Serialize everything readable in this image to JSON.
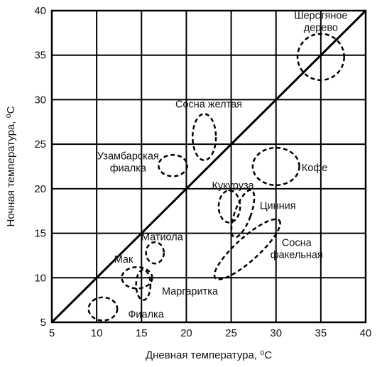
{
  "chart_data": {
    "type": "scatter",
    "title": "",
    "xlabel": "Дневная температура, ⁰С",
    "ylabel": "Ночная температура, ⁰С",
    "xlim": [
      5,
      40
    ],
    "ylim": [
      5,
      40
    ],
    "xticks": [
      "5",
      "10",
      "15",
      "20",
      "25",
      "30",
      "35",
      "40"
    ],
    "yticks": [
      "5",
      "10",
      "15",
      "20",
      "25",
      "30",
      "35",
      "40"
    ],
    "grid": true,
    "diagonal": {
      "from": [
        5,
        5
      ],
      "to": [
        40,
        40
      ]
    },
    "regions": [
      {
        "label_lines": [
          "Шерстяное",
          "дерево"
        ],
        "x_center": 35.0,
        "y_center": 34.8,
        "x_halfwidth": 2.6,
        "y_halfwidth": 2.6,
        "angle": 0,
        "label_x": 35.0,
        "label_y": 38.8
      },
      {
        "label_lines": [
          "Сосна желтая"
        ],
        "x_center": 22.0,
        "y_center": 25.8,
        "x_halfwidth": 1.3,
        "y_halfwidth": 2.6,
        "angle": 0,
        "label_x": 22.5,
        "label_y": 29.5
      },
      {
        "label_lines": [
          "Узамбарская",
          "фиалка"
        ],
        "x_center": 18.5,
        "y_center": 22.6,
        "x_halfwidth": 1.6,
        "y_halfwidth": 1.2,
        "angle": 0,
        "label_x": 13.5,
        "label_y": 23.0
      },
      {
        "label_lines": [
          "Кофе"
        ],
        "x_center": 30.0,
        "y_center": 22.5,
        "x_halfwidth": 2.6,
        "y_halfwidth": 2.1,
        "angle": 0,
        "label_x": 34.3,
        "label_y": 22.4
      },
      {
        "label_lines": [
          "Кукуруза"
        ],
        "x_center": 24.8,
        "y_center": 18.0,
        "x_halfwidth": 1.2,
        "y_halfwidth": 1.8,
        "angle": 0,
        "label_x": 25.2,
        "label_y": 20.4
      },
      {
        "label_lines": [
          "Цинния"
        ],
        "x_center": 26.3,
        "y_center": 17.2,
        "x_halfwidth": 0.9,
        "y_halfwidth": 2.8,
        "angle": 20,
        "label_x": 30.2,
        "label_y": 18.1
      },
      {
        "label_lines": [
          "Сосна",
          "факельная"
        ],
        "x_center": 26.8,
        "y_center": 13.2,
        "x_halfwidth": 4.8,
        "y_halfwidth": 1.3,
        "angle": -42,
        "label_x": 32.3,
        "label_y": 13.3
      },
      {
        "label_lines": [
          "Матиола"
        ],
        "x_center": 16.5,
        "y_center": 12.8,
        "x_halfwidth": 1.0,
        "y_halfwidth": 1.2,
        "angle": 0,
        "label_x": 17.3,
        "label_y": 14.6
      },
      {
        "label_lines": [
          "Мак"
        ],
        "x_center": 14.5,
        "y_center": 10.0,
        "x_halfwidth": 1.7,
        "y_halfwidth": 1.2,
        "angle": 0,
        "label_x": 13.0,
        "label_y": 12.1
      },
      {
        "label_lines": [
          "Маргаритка"
        ],
        "x_center": 15.2,
        "y_center": 9.2,
        "x_halfwidth": 0.8,
        "y_halfwidth": 1.7,
        "angle": 0,
        "label_x": 20.4,
        "label_y": 8.5
      },
      {
        "label_lines": [
          "Фиалка"
        ],
        "x_center": 10.7,
        "y_center": 6.5,
        "x_halfwidth": 1.6,
        "y_halfwidth": 1.3,
        "angle": 0,
        "label_x": 15.5,
        "label_y": 5.9
      }
    ]
  }
}
